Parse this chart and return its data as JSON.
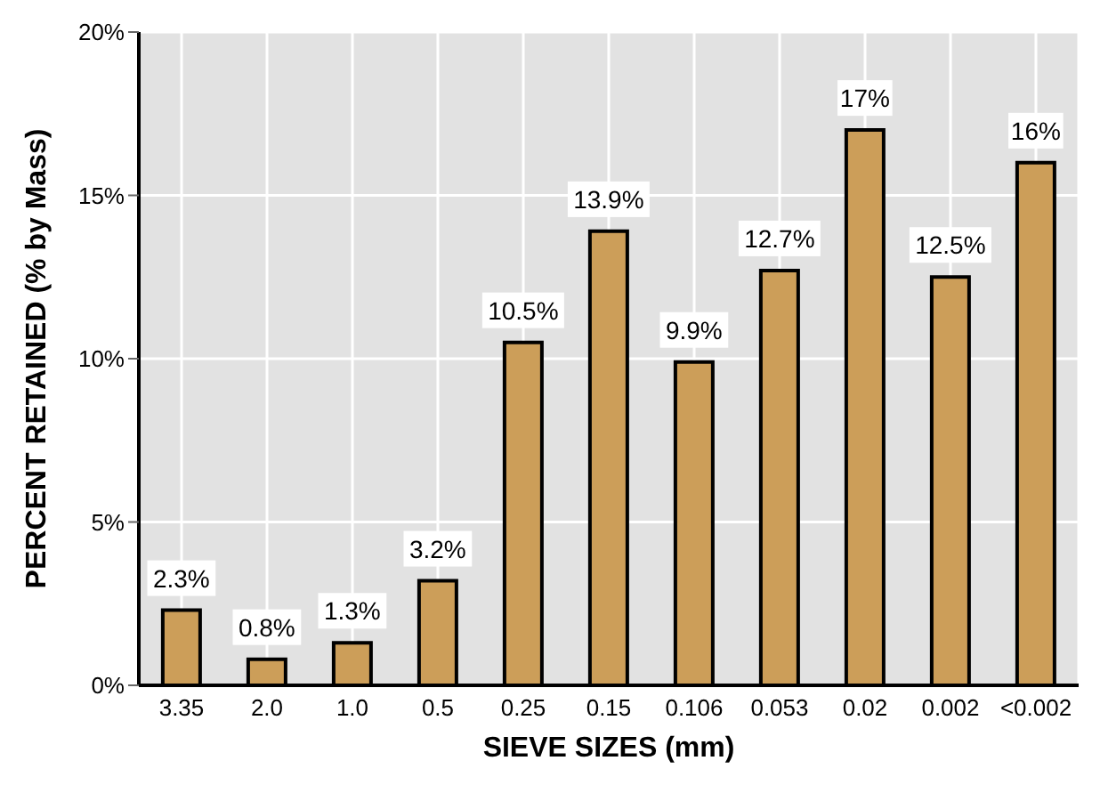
{
  "chart_data": {
    "type": "bar",
    "xlabel": "SIEVE SIZES (mm)",
    "ylabel": "PERCENT RETAINED (% by Mass)",
    "categories": [
      "3.35",
      "2.0",
      "1.0",
      "0.5",
      "0.25",
      "0.15",
      "0.106",
      "0.053",
      "0.02",
      "0.002",
      "<0.002"
    ],
    "values": [
      2.3,
      0.8,
      1.3,
      3.2,
      10.5,
      13.9,
      9.9,
      12.7,
      17,
      12.5,
      16
    ],
    "value_labels": [
      "2.3%",
      "0.8%",
      "1.3%",
      "3.2%",
      "10.5%",
      "13.9%",
      "9.9%",
      "12.7%",
      "17%",
      "12.5%",
      "16%"
    ],
    "color": "#cc9e59",
    "ylim": [
      0,
      20
    ],
    "yticks": [
      {
        "value": 0,
        "label": "0%"
      },
      {
        "value": 5,
        "label": "5%"
      },
      {
        "value": 10,
        "label": "10%"
      },
      {
        "value": 15,
        "label": "15%"
      },
      {
        "value": 20,
        "label": "20%"
      }
    ],
    "grid": true
  }
}
